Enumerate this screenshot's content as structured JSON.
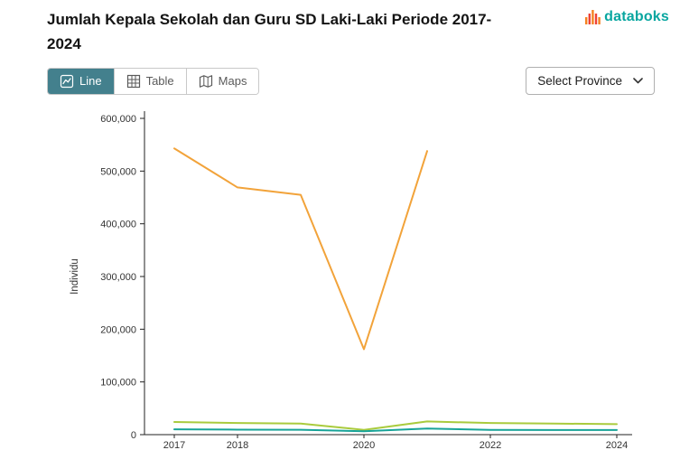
{
  "header": {
    "title": "Jumlah Kepala Sekolah dan Guru SD Laki-Laki Periode 2017-2024",
    "brand": "databoks"
  },
  "toolbar": {
    "tabs": [
      {
        "label": "Line",
        "active": true
      },
      {
        "label": "Table",
        "active": false
      },
      {
        "label": "Maps",
        "active": false
      }
    ],
    "province_select": "Select Province"
  },
  "colors": {
    "active_tab": "#43808d",
    "brand_teal": "#08a6a0",
    "logo_orange": "#f58220",
    "logo_red": "#ee4036",
    "axis": "#222222"
  },
  "chart_data": {
    "type": "line",
    "title": "Jumlah Kepala Sekolah dan Guru SD Laki-Laki Periode 2017-2024",
    "xlabel": "",
    "ylabel": "Individu",
    "ylim": [
      0,
      600000
    ],
    "ytick_step": 100000,
    "x": [
      2017,
      2018,
      2019,
      2020,
      2021,
      2022,
      2023,
      2024
    ],
    "xtick_labels": [
      "2017",
      "2018",
      "2020",
      "2022",
      "2024"
    ],
    "grid": false,
    "legend_position": "none",
    "series": [
      {
        "name": "orange-series",
        "color": "#f2a33a",
        "values": [
          543000,
          469000,
          455000,
          162000,
          538000,
          null,
          null,
          null
        ]
      },
      {
        "name": "green-series",
        "color": "#a9cb3d",
        "values": [
          24000,
          22000,
          21000,
          9000,
          25000,
          22000,
          21000,
          20000
        ]
      },
      {
        "name": "teal-series",
        "color": "#17a398",
        "values": [
          10000,
          9500,
          9300,
          6500,
          11500,
          9000,
          8800,
          8700
        ]
      }
    ]
  }
}
